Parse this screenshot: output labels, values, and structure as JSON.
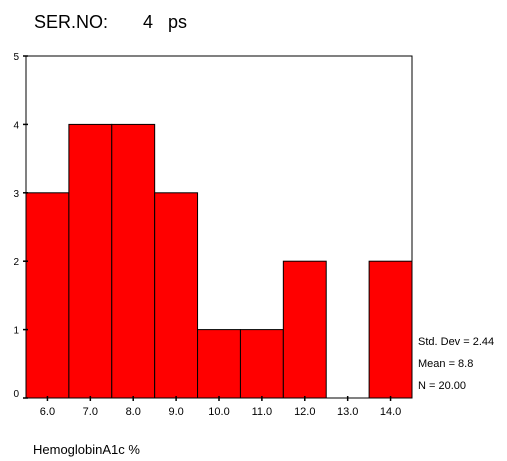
{
  "chart_data": {
    "type": "bar",
    "title": "SER.NO:       4   ps",
    "categories": [
      "6.0",
      "7.0",
      "8.0",
      "9.0",
      "10.0",
      "11.0",
      "12.0",
      "13.0",
      "14.0"
    ],
    "values": [
      3,
      4,
      4,
      3,
      1,
      1,
      2,
      0,
      2
    ],
    "xlabel": "HemoglobinA1c %",
    "ylabel": "",
    "ylim": [
      0,
      5
    ],
    "yticks": [
      "0",
      "1",
      "2",
      "3",
      "4",
      "5"
    ],
    "grid": false,
    "bar_color": "#ff0000",
    "stats": [
      "Std. Dev = 2.44",
      "Mean = 8.8",
      "N = 20.00"
    ]
  }
}
